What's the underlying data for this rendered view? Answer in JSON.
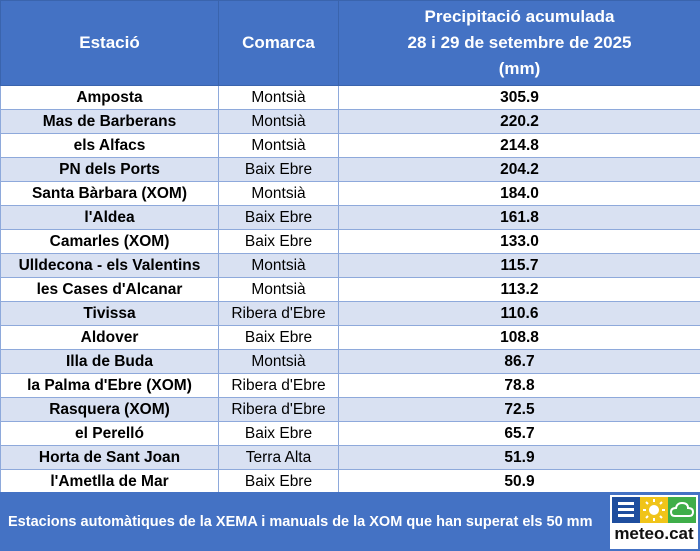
{
  "header": {
    "station": "Estació",
    "county": "Comarca",
    "precip_line1": "Precipitació acumulada",
    "precip_line2": "28 i 29 de setembre de 2025",
    "precip_line3": "(mm)"
  },
  "rows": [
    {
      "station": "Amposta",
      "county": "Montsià",
      "value": "305.9"
    },
    {
      "station": "Mas de Barberans",
      "county": "Montsià",
      "value": "220.2"
    },
    {
      "station": "els Alfacs",
      "county": "Montsià",
      "value": "214.8"
    },
    {
      "station": "PN dels Ports",
      "county": "Baix Ebre",
      "value": "204.2"
    },
    {
      "station": "Santa Bàrbara (XOM)",
      "county": "Montsià",
      "value": "184.0"
    },
    {
      "station": "l'Aldea",
      "county": "Baix Ebre",
      "value": "161.8"
    },
    {
      "station": "Camarles (XOM)",
      "county": "Baix Ebre",
      "value": "133.0"
    },
    {
      "station": "Ulldecona - els Valentins",
      "county": "Montsià",
      "value": "115.7"
    },
    {
      "station": "les Cases d'Alcanar",
      "county": "Montsià",
      "value": "113.2"
    },
    {
      "station": "Tivissa",
      "county": "Ribera d'Ebre",
      "value": "110.6"
    },
    {
      "station": "Aldover",
      "county": "Baix Ebre",
      "value": "108.8"
    },
    {
      "station": "Illa de Buda",
      "county": "Montsià",
      "value": "86.7"
    },
    {
      "station": "la Palma d'Ebre (XOM)",
      "county": "Ribera d'Ebre",
      "value": "78.8"
    },
    {
      "station": "Rasquera (XOM)",
      "county": "Ribera d'Ebre",
      "value": "72.5"
    },
    {
      "station": "el Perelló",
      "county": "Baix Ebre",
      "value": "65.7"
    },
    {
      "station": "Horta de Sant Joan",
      "county": "Terra Alta",
      "value": "51.9"
    },
    {
      "station": "l'Ametlla de Mar",
      "county": "Baix Ebre",
      "value": "50.9"
    }
  ],
  "footer": {
    "note": "Estacions automàtiques de la XEMA i manuals de la XOM que han superat els 50 mm"
  },
  "logo": {
    "text": "meteo.cat",
    "icons": [
      "menu-icon",
      "sun-icon",
      "cloud-icon"
    ]
  },
  "colors": {
    "header_bg": "#4472c4",
    "band": "#d9e1f2",
    "footer_bg": "#4472c4"
  }
}
